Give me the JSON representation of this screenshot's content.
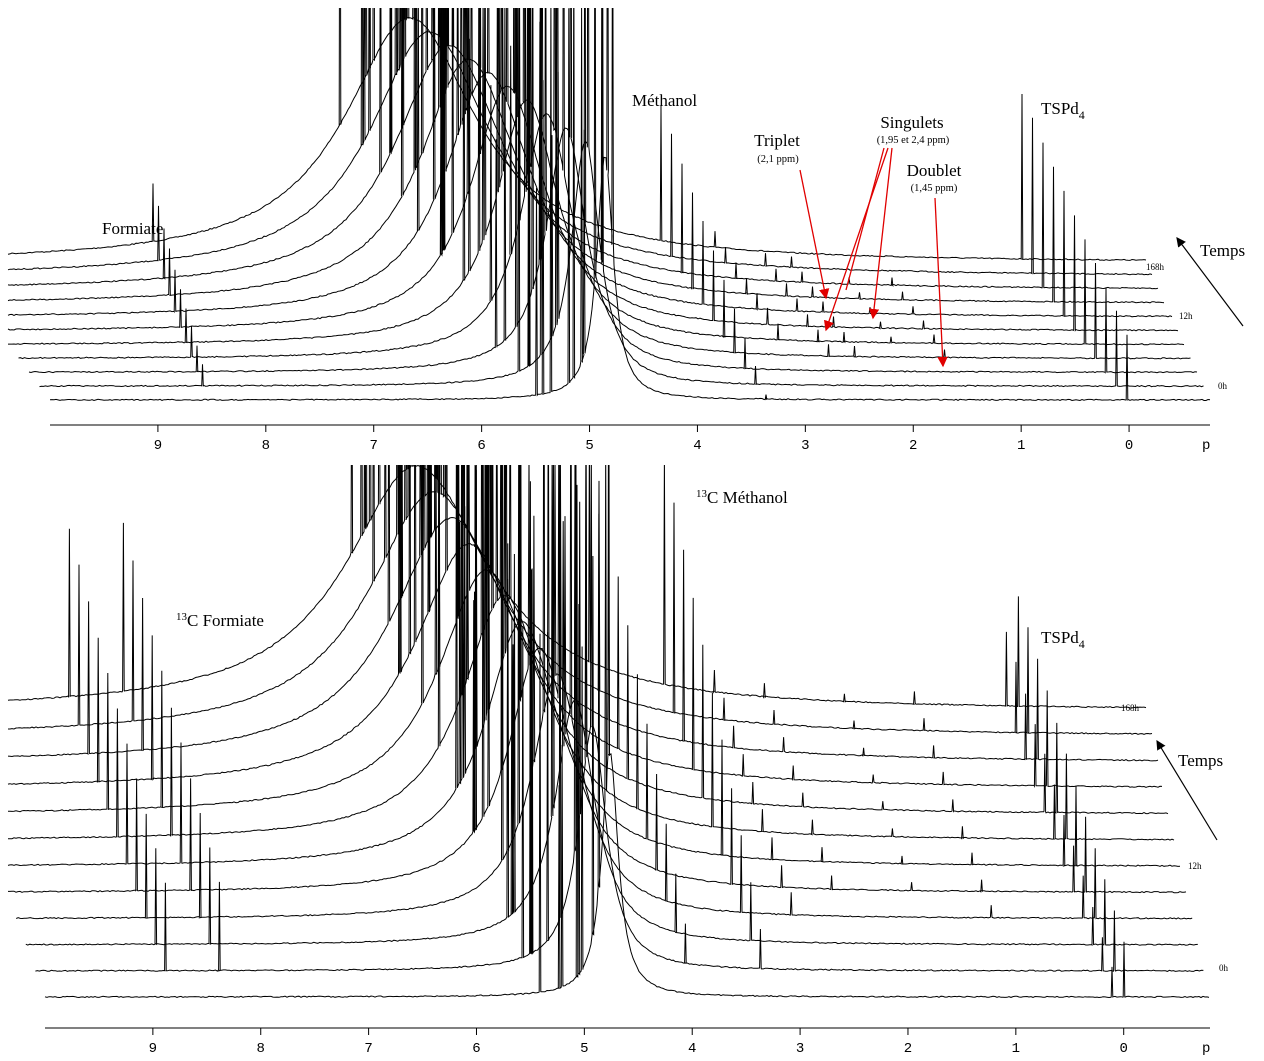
{
  "chart_data": [
    {
      "type": "spectra",
      "xlim": [
        10,
        -0.75
      ],
      "xticks": [
        9,
        8,
        7,
        6,
        5,
        4,
        3,
        2,
        1,
        0
      ],
      "xlabel": "p",
      "annotations": {
        "formiate": "Formiate",
        "methanol": "Méthanol",
        "triplet": "Triplet",
        "triplet_ppm": "(2,1 ppm)",
        "singulets": "Singulets",
        "singulets_ppm": "(1,95 et 2,4 ppm)",
        "doublet": "Doublet",
        "doublet_ppm": "(1,45 ppm)",
        "tsp": {
          "text": "TSPd",
          "sub": "4"
        },
        "time": "Temps"
      },
      "trace_labels": [
        "168h",
        "12h",
        "0h"
      ]
    },
    {
      "type": "spectra",
      "xlim": [
        10,
        -0.8
      ],
      "xticks": [
        9,
        8,
        7,
        6,
        5,
        4,
        3,
        2,
        1,
        0
      ],
      "xlabel": "p",
      "annotations": {
        "formiate": {
          "sup": "13",
          "text": "C Formiate"
        },
        "methanol": {
          "sup": "13",
          "text": "C Méthanol"
        },
        "tsp": {
          "text": "TSPd",
          "sub": "4"
        },
        "time": "Temps"
      },
      "trace_labels": [
        "168h",
        "12h",
        "0h"
      ]
    }
  ]
}
